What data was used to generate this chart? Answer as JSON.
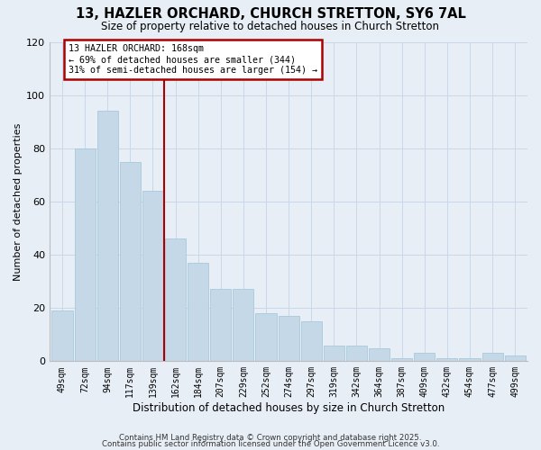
{
  "title1": "13, HAZLER ORCHARD, CHURCH STRETTON, SY6 7AL",
  "title2": "Size of property relative to detached houses in Church Stretton",
  "xlabel": "Distribution of detached houses by size in Church Stretton",
  "ylabel": "Number of detached properties",
  "bar_labels": [
    "49sqm",
    "72sqm",
    "94sqm",
    "117sqm",
    "139sqm",
    "162sqm",
    "184sqm",
    "207sqm",
    "229sqm",
    "252sqm",
    "274sqm",
    "297sqm",
    "319sqm",
    "342sqm",
    "364sqm",
    "387sqm",
    "409sqm",
    "432sqm",
    "454sqm",
    "477sqm",
    "499sqm"
  ],
  "bar_values": [
    19,
    80,
    94,
    75,
    64,
    46,
    37,
    27,
    27,
    18,
    17,
    15,
    6,
    6,
    5,
    1,
    3,
    1,
    1,
    3,
    2
  ],
  "bar_color": "#c5d8e8",
  "bar_edge_color": "#a0c4d8",
  "vline_color": "#aa0000",
  "annotation_title": "13 HAZLER ORCHARD: 168sqm",
  "annotation_line1": "← 69% of detached houses are smaller (344)",
  "annotation_line2": "31% of semi-detached houses are larger (154) →",
  "annotation_box_color": "#aa0000",
  "annotation_bg": "#ffffff",
  "ylim": [
    0,
    120
  ],
  "yticks": [
    0,
    20,
    40,
    60,
    80,
    100,
    120
  ],
  "grid_color": "#c8d8e8",
  "bg_color": "#e8eef6",
  "footer1": "Contains HM Land Registry data © Crown copyright and database right 2025.",
  "footer2": "Contains public sector information licensed under the Open Government Licence v3.0."
}
